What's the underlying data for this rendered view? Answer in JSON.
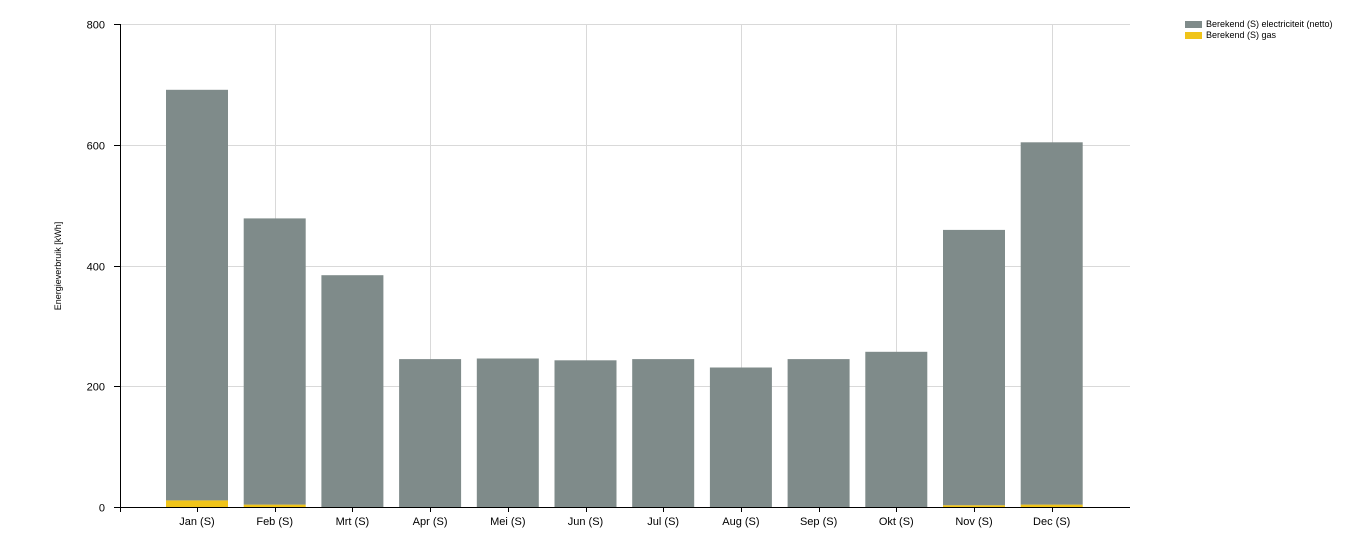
{
  "chart_data": {
    "type": "bar",
    "stacked": true,
    "ylabel": "Energieverbruik [kWh]",
    "ylim": [
      0,
      800
    ],
    "yticks": [
      0,
      200,
      400,
      600,
      800
    ],
    "grid": true,
    "legend_position": "top-right",
    "categories": [
      "Jan (S)",
      "Feb (S)",
      "Mrt (S)",
      "Apr (S)",
      "Mei (S)",
      "Jun (S)",
      "Jul (S)",
      "Aug (S)",
      "Sep (S)",
      "Okt (S)",
      "Nov (S)",
      "Dec (S)"
    ],
    "series": [
      {
        "name": "Berekend (S) gas",
        "color": "#f0c419",
        "values": [
          11,
          4,
          0,
          0,
          0,
          0,
          0,
          0,
          0,
          0,
          3,
          4
        ]
      },
      {
        "name": "Berekend (S) electriciteit (netto)",
        "color": "#7f8b8a",
        "values": [
          680,
          474,
          384,
          245,
          246,
          243,
          245,
          231,
          245,
          257,
          456,
          600
        ]
      }
    ]
  },
  "legend": {
    "items": [
      {
        "label": "Berekend (S) electriciteit (netto)",
        "color": "#7f8b8a"
      },
      {
        "label": "Berekend (S) gas",
        "color": "#f0c419"
      }
    ]
  }
}
